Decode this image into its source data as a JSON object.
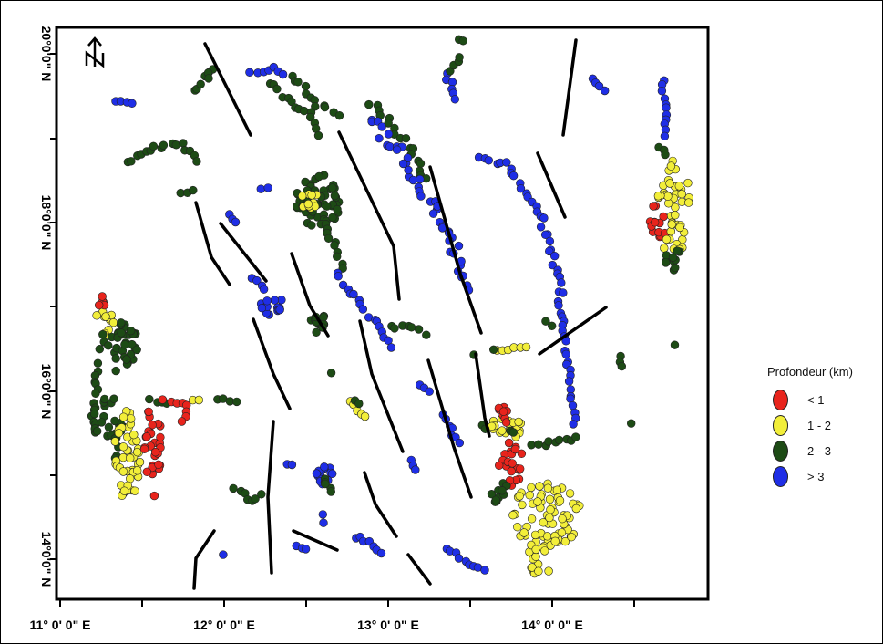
{
  "map": {
    "lat_labels": [
      "20°0'0\" N",
      "18°0'0\" N",
      "16°0'0\" N",
      "14°0'0\" N"
    ],
    "lon_labels": [
      "11° 0' 0\" E",
      "12° 0' 0\" E",
      "13° 0' 0\" E",
      "14° 0' 0\" E"
    ],
    "north_arrow": "north-arrow-icon",
    "fault_color": "#000000"
  },
  "legend": {
    "title": "Profondeur (km)",
    "items": [
      {
        "label": "< 1",
        "color": "#e8241c"
      },
      {
        "label": "1 - 2",
        "color": "#f2ee3a"
      },
      {
        "label": "2 - 3",
        "color": "#1d4b15"
      },
      {
        "label": "> 3",
        "color": "#1f2ee6"
      }
    ]
  }
}
